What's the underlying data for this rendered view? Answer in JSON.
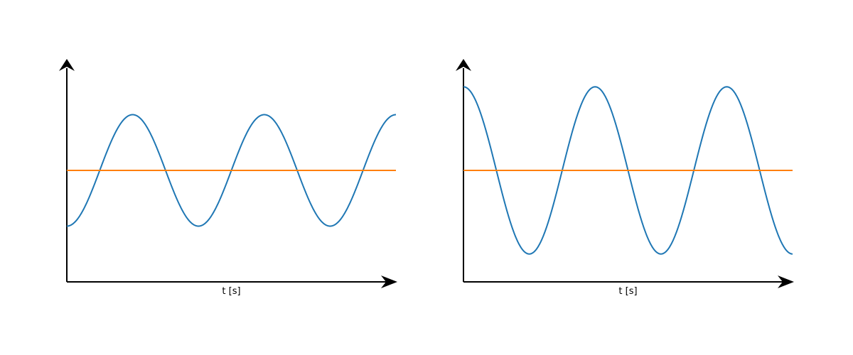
{
  "chart_data": [
    {
      "type": "line",
      "title": "",
      "xlabel": "t [s]",
      "ylabel": "",
      "xlim": [
        0,
        2.5
      ],
      "ylim": [
        -2,
        2
      ],
      "grid": false,
      "legend": "none",
      "series": [
        {
          "color": "#1f77b4",
          "function": "oscillation",
          "amplitude": 1.0,
          "period": 1.0,
          "phase_start": "trough",
          "x": [
            0,
            0.125,
            0.25,
            0.375,
            0.5,
            0.625,
            0.75,
            0.875,
            1.0,
            1.125,
            1.25,
            1.375,
            1.5,
            1.625,
            1.75,
            1.875,
            2.0,
            2.125,
            2.25,
            2.375,
            2.5
          ],
          "y": [
            -1,
            -0.707,
            0,
            0.707,
            1,
            0.707,
            0,
            -0.707,
            -1,
            -0.707,
            0,
            0.707,
            1,
            0.707,
            0,
            -0.707,
            -1,
            -0.707,
            0,
            0.707,
            1
          ]
        },
        {
          "color": "#ff7f0e",
          "function": "constant",
          "value": 0.0,
          "x": [
            0,
            2.5
          ],
          "y": [
            0,
            0
          ]
        }
      ]
    },
    {
      "type": "line",
      "title": "",
      "xlabel": "t [s]",
      "ylabel": "",
      "xlim": [
        0,
        2.5
      ],
      "ylim": [
        -2,
        2
      ],
      "grid": false,
      "legend": "none",
      "series": [
        {
          "color": "#1f77b4",
          "function": "oscillation",
          "amplitude": 1.5,
          "period": 1.0,
          "phase_start": "peak",
          "x": [
            0,
            0.125,
            0.25,
            0.375,
            0.5,
            0.625,
            0.75,
            0.875,
            1.0,
            1.125,
            1.25,
            1.375,
            1.5,
            1.625,
            1.75,
            1.875,
            2.0,
            2.125,
            2.25,
            2.375,
            2.5
          ],
          "y": [
            1.5,
            1.061,
            0,
            -1.061,
            -1.5,
            -1.061,
            0,
            1.061,
            1.5,
            1.061,
            0,
            -1.061,
            -1.5,
            -1.061,
            0,
            1.061,
            1.5,
            1.061,
            0,
            -1.061,
            -1.5
          ]
        },
        {
          "color": "#ff7f0e",
          "function": "constant",
          "value": 0.0,
          "x": [
            0,
            2.5
          ],
          "y": [
            0,
            0
          ]
        }
      ]
    }
  ]
}
